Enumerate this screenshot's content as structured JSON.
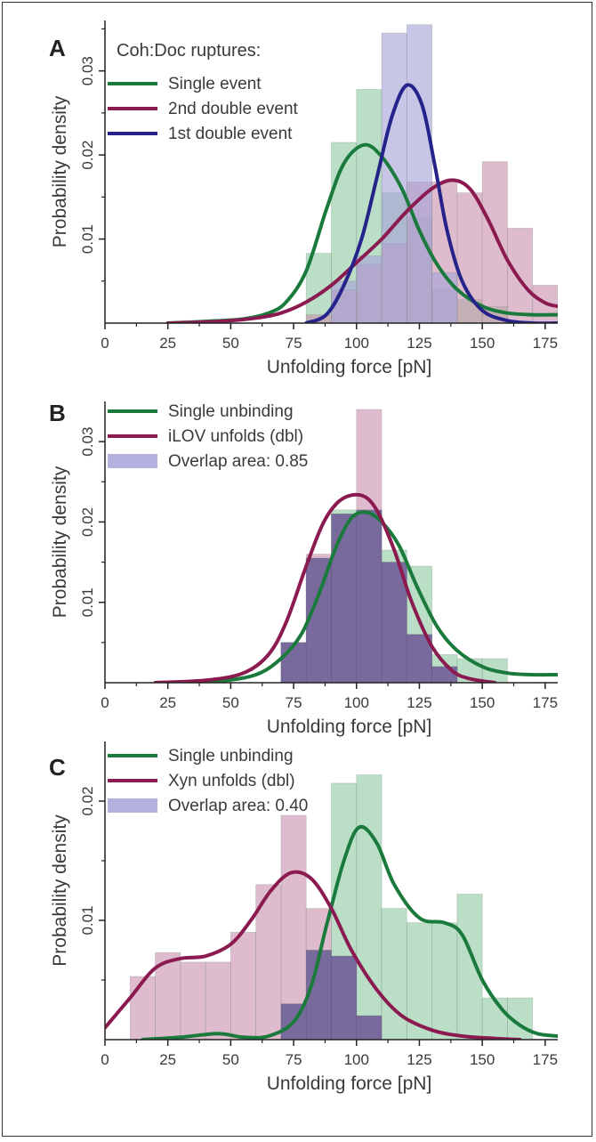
{
  "colors": {
    "green": "#1a7a3c",
    "maroon": "#8a1a4f",
    "navy": "#25228a",
    "hist_green": "#8fc9a3",
    "hist_maroon": "#c993ae",
    "hist_blue": "#a7a3d9",
    "hist_overlap": "#5b4f94"
  },
  "chart_data": [
    {
      "panel": "A",
      "type": "bar",
      "xlabel": "Unfolding force [pN]",
      "ylabel": "Probability density",
      "xlim": [
        0,
        180
      ],
      "ylim": [
        0,
        0.036
      ],
      "xticks": [
        0,
        25,
        50,
        75,
        100,
        125,
        150,
        175
      ],
      "yticks": [
        0.01,
        0.02,
        0.03
      ],
      "legend_title": "Coh:Doc ruptures:",
      "legend_position": "top-left",
      "histograms": [
        {
          "color": "hist_green",
          "bin_width": 10,
          "edges_start": 80,
          "values": [
            0.0083,
            0.0215,
            0.0278,
            0.0155,
            0.0125,
            0.004,
            0.0028,
            0.002,
            0.0
          ]
        },
        {
          "color": "hist_maroon",
          "bin_width": 10,
          "edges_start": 80,
          "values": [
            0.001,
            0.004,
            0.007,
            0.0095,
            0.0168,
            0.0168,
            0.0155,
            0.0192,
            0.0113,
            0.0045,
            0.002
          ]
        },
        {
          "color": "hist_blue",
          "bin_width": 10,
          "edges_start": 90,
          "values": [
            0.005,
            0.008,
            0.0345,
            0.0355,
            0.006,
            0.0,
            0.0
          ]
        }
      ],
      "series": [
        {
          "name": "Single event",
          "color": "green",
          "x": [
            25,
            40,
            55,
            65,
            72,
            80,
            88,
            95,
            103,
            110,
            118,
            125,
            132,
            140,
            150,
            160,
            170,
            180
          ],
          "y": [
            0.0,
            0.0002,
            0.0005,
            0.0012,
            0.0025,
            0.0062,
            0.0135,
            0.019,
            0.0212,
            0.0198,
            0.016,
            0.011,
            0.007,
            0.004,
            0.002,
            0.0012,
            0.001,
            0.001
          ]
        },
        {
          "name": "2nd double event",
          "color": "maroon",
          "x": [
            25,
            45,
            60,
            70,
            80,
            90,
            100,
            110,
            120,
            130,
            138,
            145,
            152,
            160,
            168,
            175,
            180
          ],
          "y": [
            0.0,
            0.0002,
            0.0006,
            0.0012,
            0.0025,
            0.0045,
            0.0072,
            0.01,
            0.0133,
            0.016,
            0.017,
            0.016,
            0.0125,
            0.0075,
            0.004,
            0.0024,
            0.002
          ]
        },
        {
          "name": "1st double event",
          "color": "navy",
          "x": [
            80,
            88,
            95,
            102,
            108,
            114,
            120,
            126,
            131,
            136,
            142,
            150,
            160,
            170,
            180
          ],
          "y": [
            0.0,
            0.001,
            0.0045,
            0.01,
            0.0172,
            0.0245,
            0.0283,
            0.026,
            0.019,
            0.011,
            0.005,
            0.0015,
            0.0003,
            0.0,
            0.0
          ]
        }
      ]
    },
    {
      "panel": "B",
      "type": "bar",
      "xlabel": "Unfolding force [pN]",
      "ylabel": "Probability density",
      "xlim": [
        0,
        180
      ],
      "ylim": [
        0,
        0.035
      ],
      "xticks": [
        0,
        25,
        50,
        75,
        100,
        125,
        150,
        175
      ],
      "yticks": [
        0.01,
        0.02,
        0.03
      ],
      "legend_position": "top-left",
      "histograms": [
        {
          "color": "hist_green",
          "bin_width": 10,
          "edges_start": 70,
          "values": [
            0.005,
            0.0155,
            0.0215,
            0.0215,
            0.0165,
            0.0145,
            0.0035,
            0.003,
            0.003
          ]
        },
        {
          "color": "hist_maroon",
          "bin_width": 10,
          "edges_start": 70,
          "values": [
            0.005,
            0.016,
            0.021,
            0.034,
            0.015,
            0.006,
            0.002,
            0.0
          ]
        }
      ],
      "series": [
        {
          "name": "Single unbinding",
          "color": "green",
          "x": [
            25,
            45,
            60,
            70,
            78,
            85,
            92,
            98,
            104,
            110,
            117,
            124,
            132,
            140,
            150,
            160,
            170,
            180
          ],
          "y": [
            0.0,
            0.0002,
            0.001,
            0.003,
            0.006,
            0.011,
            0.017,
            0.0205,
            0.0212,
            0.02,
            0.017,
            0.012,
            0.007,
            0.004,
            0.002,
            0.0012,
            0.001,
            0.001
          ]
        },
        {
          "name": "iLOV unfolds (dbl)",
          "color": "maroon",
          "x": [
            20,
            40,
            55,
            65,
            72,
            80,
            87,
            94,
            102,
            108,
            115,
            122,
            130,
            138,
            145,
            155
          ],
          "y": [
            0.0,
            0.0003,
            0.0012,
            0.0035,
            0.0075,
            0.0145,
            0.02,
            0.0228,
            0.0233,
            0.0215,
            0.0165,
            0.01,
            0.0045,
            0.0015,
            0.0005,
            0.0
          ]
        }
      ],
      "overlap_legend": "Overlap area: 0.85"
    },
    {
      "panel": "C",
      "type": "bar",
      "xlabel": "Unfolding force [pN]",
      "ylabel": "Probability density",
      "xlim": [
        0,
        180
      ],
      "ylim": [
        0,
        0.025
      ],
      "xticks": [
        0,
        25,
        50,
        75,
        100,
        125,
        150,
        175
      ],
      "yticks": [
        0.01,
        0.02
      ],
      "legend_position": "top-left",
      "histograms": [
        {
          "color": "hist_green",
          "bin_width": 10,
          "edges_start": 70,
          "values": [
            0.003,
            0.0075,
            0.0215,
            0.0222,
            0.011,
            0.0098,
            0.0098,
            0.0122,
            0.0035,
            0.0035
          ]
        },
        {
          "color": "hist_maroon",
          "bin_width": 10,
          "edges_start": 10,
          "values": [
            0.0053,
            0.0073,
            0.0065,
            0.0065,
            0.009,
            0.013,
            0.0188,
            0.011,
            0.007,
            0.002,
            0.0
          ]
        }
      ],
      "series": [
        {
          "name": "Single unbinding",
          "color": "green",
          "x": [
            15,
            30,
            45,
            55,
            65,
            75,
            82,
            88,
            95,
            101,
            108,
            115,
            125,
            135,
            142,
            150,
            158,
            165,
            172,
            180
          ],
          "y": [
            0.0,
            0.0002,
            0.0005,
            0.0002,
            0.0003,
            0.0015,
            0.0045,
            0.0095,
            0.015,
            0.0178,
            0.0165,
            0.013,
            0.0102,
            0.0098,
            0.0088,
            0.005,
            0.0025,
            0.0012,
            0.0005,
            0.0003
          ]
        },
        {
          "name": "Xyn unfolds (dbl)",
          "color": "maroon",
          "x": [
            0,
            10,
            20,
            30,
            40,
            50,
            58,
            66,
            74,
            82,
            90,
            98,
            108,
            118,
            130,
            142,
            155,
            165
          ],
          "y": [
            0.001,
            0.0035,
            0.006,
            0.0068,
            0.007,
            0.008,
            0.01,
            0.0125,
            0.014,
            0.0135,
            0.011,
            0.0075,
            0.0042,
            0.002,
            0.0008,
            0.0003,
            0.0001,
            0.0
          ]
        }
      ],
      "overlap_legend": "Overlap area: 0.40"
    }
  ],
  "panel_labels": {
    "a": "A",
    "b": "B",
    "c": "C"
  },
  "legend_a": {
    "title": "Coh:Doc ruptures:",
    "items": [
      "Single event",
      "2nd double event",
      "1st double event"
    ]
  },
  "legend_b": {
    "items": [
      "Single unbinding",
      "iLOV unfolds (dbl)",
      "Overlap area: 0.85"
    ]
  },
  "legend_c": {
    "items": [
      "Single unbinding",
      "Xyn unfolds (dbl)",
      "Overlap area: 0.40"
    ]
  }
}
